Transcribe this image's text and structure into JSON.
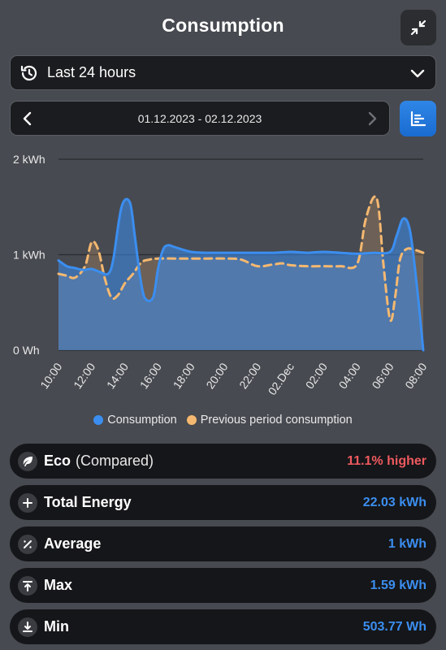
{
  "header": {
    "title": "Consumption"
  },
  "range_select": {
    "label": "Last 24 hours"
  },
  "date_nav": {
    "range": "01.12.2023 - 02.12.2023"
  },
  "colors": {
    "consumption": "#3b8ef0",
    "previous": "#f5b870",
    "higher": "#ef5a5f"
  },
  "chart_data": {
    "type": "area",
    "y_ticks": [
      "0 Wh",
      "1 kWh",
      "2 kWh"
    ],
    "ylim": [
      0,
      2
    ],
    "y_unit": "kWh",
    "x_labels": [
      "10:00",
      "12:00",
      "14:00",
      "16:00",
      "18:00",
      "20:00",
      "22:00",
      "02.Dec",
      "02:00",
      "04:00",
      "06:00",
      "08:00"
    ],
    "x_start": 10,
    "x_end": 32,
    "series": [
      {
        "name": "Consumption",
        "color": "#3b8ef0",
        "x": [
          10,
          10.5,
          11,
          11.5,
          12,
          12.5,
          13,
          13.3,
          13.8,
          14.3,
          14.6,
          14.9,
          15.2,
          15.7,
          16,
          16.3,
          16.6,
          17,
          18,
          19,
          20,
          21,
          22,
          23,
          24,
          25,
          26,
          27,
          28,
          29,
          30,
          30.4,
          30.8,
          31.2,
          31.6,
          32
        ],
        "y": [
          0.94,
          0.88,
          0.86,
          0.84,
          0.85,
          0.82,
          0.8,
          0.95,
          1.5,
          1.55,
          1.2,
          0.8,
          0.55,
          0.55,
          0.85,
          1.05,
          1.1,
          1.08,
          1.03,
          1.02,
          1.02,
          1.02,
          1.02,
          1.02,
          1.03,
          1.02,
          1.03,
          1.02,
          1.01,
          1.02,
          1.03,
          1.2,
          1.38,
          1.25,
          0.7,
          0.0
        ]
      },
      {
        "name": "Previous period consumption",
        "color": "#f5b870",
        "x": [
          10,
          10.5,
          11,
          11.6,
          12,
          12.4,
          12.8,
          13.2,
          13.6,
          14,
          14.5,
          15,
          15.5,
          16,
          17,
          18,
          19,
          20,
          21,
          22,
          23,
          23.5,
          24,
          25,
          26,
          27,
          28,
          28.5,
          29,
          29.3,
          29.6,
          30,
          30.3,
          30.6,
          31,
          31.5,
          32
        ],
        "y": [
          0.8,
          0.78,
          0.76,
          0.88,
          1.13,
          1.05,
          0.75,
          0.55,
          0.58,
          0.7,
          0.8,
          0.92,
          0.95,
          0.96,
          0.96,
          0.96,
          0.96,
          0.96,
          0.95,
          0.88,
          0.9,
          0.91,
          0.89,
          0.88,
          0.88,
          0.88,
          0.9,
          1.35,
          1.6,
          1.5,
          0.9,
          0.32,
          0.55,
          0.95,
          1.06,
          1.05,
          1.02
        ]
      }
    ]
  },
  "legend": {
    "consumption": "Consumption",
    "previous": "Previous period consumption"
  },
  "stats": [
    {
      "icon": "leaf-icon",
      "name": "Eco",
      "sub": "(Compared)",
      "value": "11.1% higher"
    },
    {
      "icon": "plus-icon",
      "name": "Total Energy",
      "sub": "",
      "value": "22.03 kWh"
    },
    {
      "icon": "percent-icon",
      "name": "Average",
      "sub": "",
      "value": "1 kWh"
    },
    {
      "icon": "arrow-up-bar-icon",
      "name": "Max",
      "sub": "",
      "value": "1.59 kWh"
    },
    {
      "icon": "arrow-down-bar-icon",
      "name": "Min",
      "sub": "",
      "value": "503.77 Wh"
    }
  ]
}
